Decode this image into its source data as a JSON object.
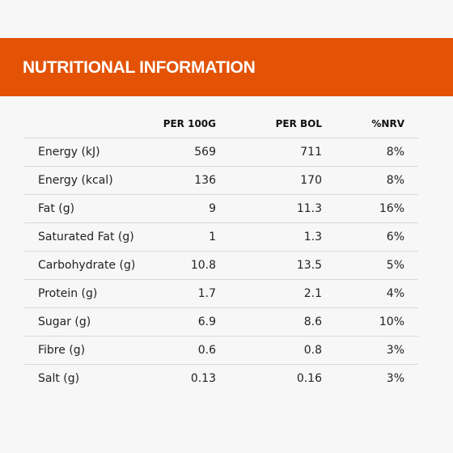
{
  "header": {
    "title": "NUTRITIONAL INFORMATION"
  },
  "table": {
    "columns": [
      "PER 100G",
      "PER BOL",
      "%NRV"
    ],
    "rows": [
      [
        "Energy (kJ)",
        "569",
        "711",
        "8%"
      ],
      [
        "Energy (kcal)",
        "136",
        "170",
        "8%"
      ],
      [
        "Fat (g)",
        "9",
        "11.3",
        "16%"
      ],
      [
        "Saturated Fat (g)",
        "1",
        "1.3",
        "6%"
      ],
      [
        "Carbohydrate (g)",
        "10.8",
        "13.5",
        "5%"
      ],
      [
        "Protein (g)",
        "1.7",
        "2.1",
        "4%"
      ],
      [
        "Sugar (g)",
        "6.9",
        "8.6",
        "10%"
      ],
      [
        "Fibre (g)",
        "0.6",
        "0.8",
        "3%"
      ],
      [
        "Salt (g)",
        "0.13",
        "0.16",
        "3%"
      ]
    ]
  }
}
